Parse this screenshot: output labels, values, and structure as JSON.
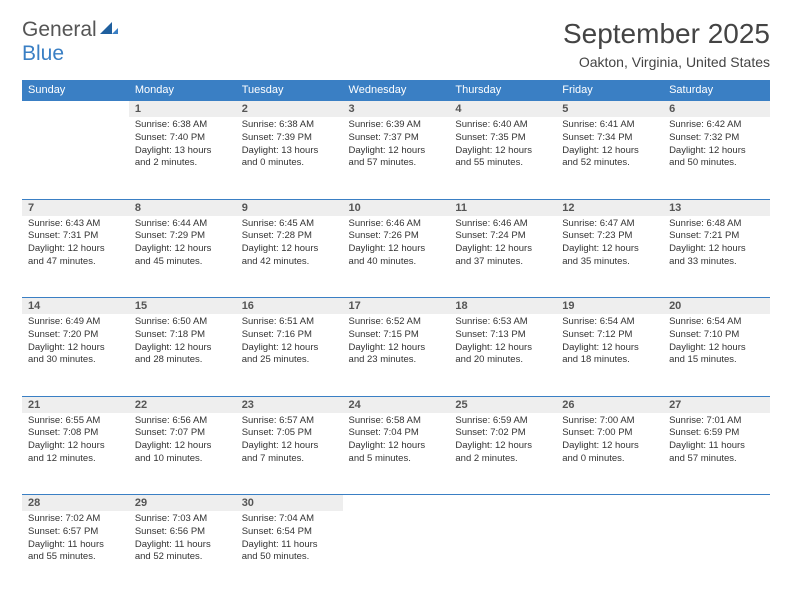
{
  "brand": {
    "word1": "General",
    "word2": "Blue"
  },
  "header": {
    "title": "September 2025",
    "location": "Oakton, Virginia, United States"
  },
  "colors": {
    "accent": "#3a7fc4",
    "header_cell_bg": "#eeeeee",
    "text": "#333333",
    "background": "#ffffff"
  },
  "typography": {
    "title_fontsize": 28,
    "location_fontsize": 14,
    "dayheader_fontsize": 11,
    "body_fontsize": 9.5
  },
  "day_headers": [
    "Sunday",
    "Monday",
    "Tuesday",
    "Wednesday",
    "Thursday",
    "Friday",
    "Saturday"
  ],
  "weeks": [
    {
      "nums": [
        "",
        "1",
        "2",
        "3",
        "4",
        "5",
        "6"
      ],
      "cells": [
        null,
        {
          "sunrise": "Sunrise: 6:38 AM",
          "sunset": "Sunset: 7:40 PM",
          "day1": "Daylight: 13 hours",
          "day2": "and 2 minutes."
        },
        {
          "sunrise": "Sunrise: 6:38 AM",
          "sunset": "Sunset: 7:39 PM",
          "day1": "Daylight: 13 hours",
          "day2": "and 0 minutes."
        },
        {
          "sunrise": "Sunrise: 6:39 AM",
          "sunset": "Sunset: 7:37 PM",
          "day1": "Daylight: 12 hours",
          "day2": "and 57 minutes."
        },
        {
          "sunrise": "Sunrise: 6:40 AM",
          "sunset": "Sunset: 7:35 PM",
          "day1": "Daylight: 12 hours",
          "day2": "and 55 minutes."
        },
        {
          "sunrise": "Sunrise: 6:41 AM",
          "sunset": "Sunset: 7:34 PM",
          "day1": "Daylight: 12 hours",
          "day2": "and 52 minutes."
        },
        {
          "sunrise": "Sunrise: 6:42 AM",
          "sunset": "Sunset: 7:32 PM",
          "day1": "Daylight: 12 hours",
          "day2": "and 50 minutes."
        }
      ]
    },
    {
      "nums": [
        "7",
        "8",
        "9",
        "10",
        "11",
        "12",
        "13"
      ],
      "cells": [
        {
          "sunrise": "Sunrise: 6:43 AM",
          "sunset": "Sunset: 7:31 PM",
          "day1": "Daylight: 12 hours",
          "day2": "and 47 minutes."
        },
        {
          "sunrise": "Sunrise: 6:44 AM",
          "sunset": "Sunset: 7:29 PM",
          "day1": "Daylight: 12 hours",
          "day2": "and 45 minutes."
        },
        {
          "sunrise": "Sunrise: 6:45 AM",
          "sunset": "Sunset: 7:28 PM",
          "day1": "Daylight: 12 hours",
          "day2": "and 42 minutes."
        },
        {
          "sunrise": "Sunrise: 6:46 AM",
          "sunset": "Sunset: 7:26 PM",
          "day1": "Daylight: 12 hours",
          "day2": "and 40 minutes."
        },
        {
          "sunrise": "Sunrise: 6:46 AM",
          "sunset": "Sunset: 7:24 PM",
          "day1": "Daylight: 12 hours",
          "day2": "and 37 minutes."
        },
        {
          "sunrise": "Sunrise: 6:47 AM",
          "sunset": "Sunset: 7:23 PM",
          "day1": "Daylight: 12 hours",
          "day2": "and 35 minutes."
        },
        {
          "sunrise": "Sunrise: 6:48 AM",
          "sunset": "Sunset: 7:21 PM",
          "day1": "Daylight: 12 hours",
          "day2": "and 33 minutes."
        }
      ]
    },
    {
      "nums": [
        "14",
        "15",
        "16",
        "17",
        "18",
        "19",
        "20"
      ],
      "cells": [
        {
          "sunrise": "Sunrise: 6:49 AM",
          "sunset": "Sunset: 7:20 PM",
          "day1": "Daylight: 12 hours",
          "day2": "and 30 minutes."
        },
        {
          "sunrise": "Sunrise: 6:50 AM",
          "sunset": "Sunset: 7:18 PM",
          "day1": "Daylight: 12 hours",
          "day2": "and 28 minutes."
        },
        {
          "sunrise": "Sunrise: 6:51 AM",
          "sunset": "Sunset: 7:16 PM",
          "day1": "Daylight: 12 hours",
          "day2": "and 25 minutes."
        },
        {
          "sunrise": "Sunrise: 6:52 AM",
          "sunset": "Sunset: 7:15 PM",
          "day1": "Daylight: 12 hours",
          "day2": "and 23 minutes."
        },
        {
          "sunrise": "Sunrise: 6:53 AM",
          "sunset": "Sunset: 7:13 PM",
          "day1": "Daylight: 12 hours",
          "day2": "and 20 minutes."
        },
        {
          "sunrise": "Sunrise: 6:54 AM",
          "sunset": "Sunset: 7:12 PM",
          "day1": "Daylight: 12 hours",
          "day2": "and 18 minutes."
        },
        {
          "sunrise": "Sunrise: 6:54 AM",
          "sunset": "Sunset: 7:10 PM",
          "day1": "Daylight: 12 hours",
          "day2": "and 15 minutes."
        }
      ]
    },
    {
      "nums": [
        "21",
        "22",
        "23",
        "24",
        "25",
        "26",
        "27"
      ],
      "cells": [
        {
          "sunrise": "Sunrise: 6:55 AM",
          "sunset": "Sunset: 7:08 PM",
          "day1": "Daylight: 12 hours",
          "day2": "and 12 minutes."
        },
        {
          "sunrise": "Sunrise: 6:56 AM",
          "sunset": "Sunset: 7:07 PM",
          "day1": "Daylight: 12 hours",
          "day2": "and 10 minutes."
        },
        {
          "sunrise": "Sunrise: 6:57 AM",
          "sunset": "Sunset: 7:05 PM",
          "day1": "Daylight: 12 hours",
          "day2": "and 7 minutes."
        },
        {
          "sunrise": "Sunrise: 6:58 AM",
          "sunset": "Sunset: 7:04 PM",
          "day1": "Daylight: 12 hours",
          "day2": "and 5 minutes."
        },
        {
          "sunrise": "Sunrise: 6:59 AM",
          "sunset": "Sunset: 7:02 PM",
          "day1": "Daylight: 12 hours",
          "day2": "and 2 minutes."
        },
        {
          "sunrise": "Sunrise: 7:00 AM",
          "sunset": "Sunset: 7:00 PM",
          "day1": "Daylight: 12 hours",
          "day2": "and 0 minutes."
        },
        {
          "sunrise": "Sunrise: 7:01 AM",
          "sunset": "Sunset: 6:59 PM",
          "day1": "Daylight: 11 hours",
          "day2": "and 57 minutes."
        }
      ]
    },
    {
      "nums": [
        "28",
        "29",
        "30",
        "",
        "",
        "",
        ""
      ],
      "cells": [
        {
          "sunrise": "Sunrise: 7:02 AM",
          "sunset": "Sunset: 6:57 PM",
          "day1": "Daylight: 11 hours",
          "day2": "and 55 minutes."
        },
        {
          "sunrise": "Sunrise: 7:03 AM",
          "sunset": "Sunset: 6:56 PM",
          "day1": "Daylight: 11 hours",
          "day2": "and 52 minutes."
        },
        {
          "sunrise": "Sunrise: 7:04 AM",
          "sunset": "Sunset: 6:54 PM",
          "day1": "Daylight: 11 hours",
          "day2": "and 50 minutes."
        },
        null,
        null,
        null,
        null
      ]
    }
  ]
}
